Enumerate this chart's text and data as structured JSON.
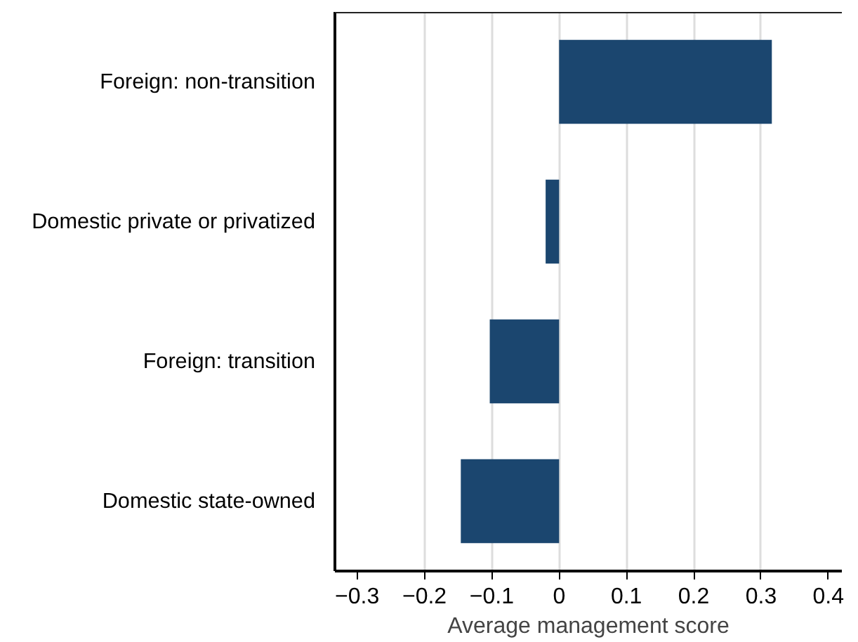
{
  "chart_data": {
    "type": "bar",
    "orientation": "horizontal",
    "categories": [
      "Foreign: non-transition",
      "Domestic private or privatized",
      "Foreign: transition",
      "Domestic state-owned"
    ],
    "values": [
      0.316,
      -0.02,
      -0.103,
      -0.146
    ],
    "color": "#1b466f",
    "xlabel": "Average management score",
    "xlim": [
      -0.333,
      0.42
    ],
    "xticks": [
      {
        "value": -0.3,
        "label": "−0.3"
      },
      {
        "value": -0.2,
        "label": "−0.2"
      },
      {
        "value": -0.1,
        "label": "−0.1"
      },
      0,
      0.1,
      0.2,
      0.3,
      0.4
    ],
    "grid": "x"
  }
}
